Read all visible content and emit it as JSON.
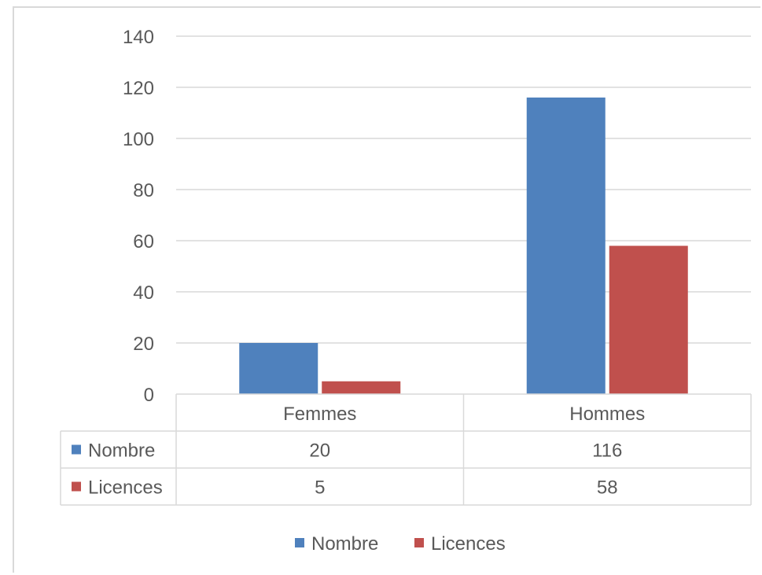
{
  "chart_data": {
    "type": "bar",
    "categories": [
      "Femmes",
      "Hommes"
    ],
    "series": [
      {
        "name": "Nombre",
        "values": [
          20,
          116
        ],
        "color": "#4f81bd"
      },
      {
        "name": "Licences",
        "values": [
          5,
          58
        ],
        "color": "#c0504d"
      }
    ],
    "ylim": [
      0,
      140
    ],
    "yticks": [
      0,
      20,
      40,
      60,
      80,
      100,
      120,
      140
    ],
    "grid": true,
    "legend": "bottom",
    "data_table": true,
    "title": "",
    "xlabel": "",
    "ylabel": ""
  }
}
